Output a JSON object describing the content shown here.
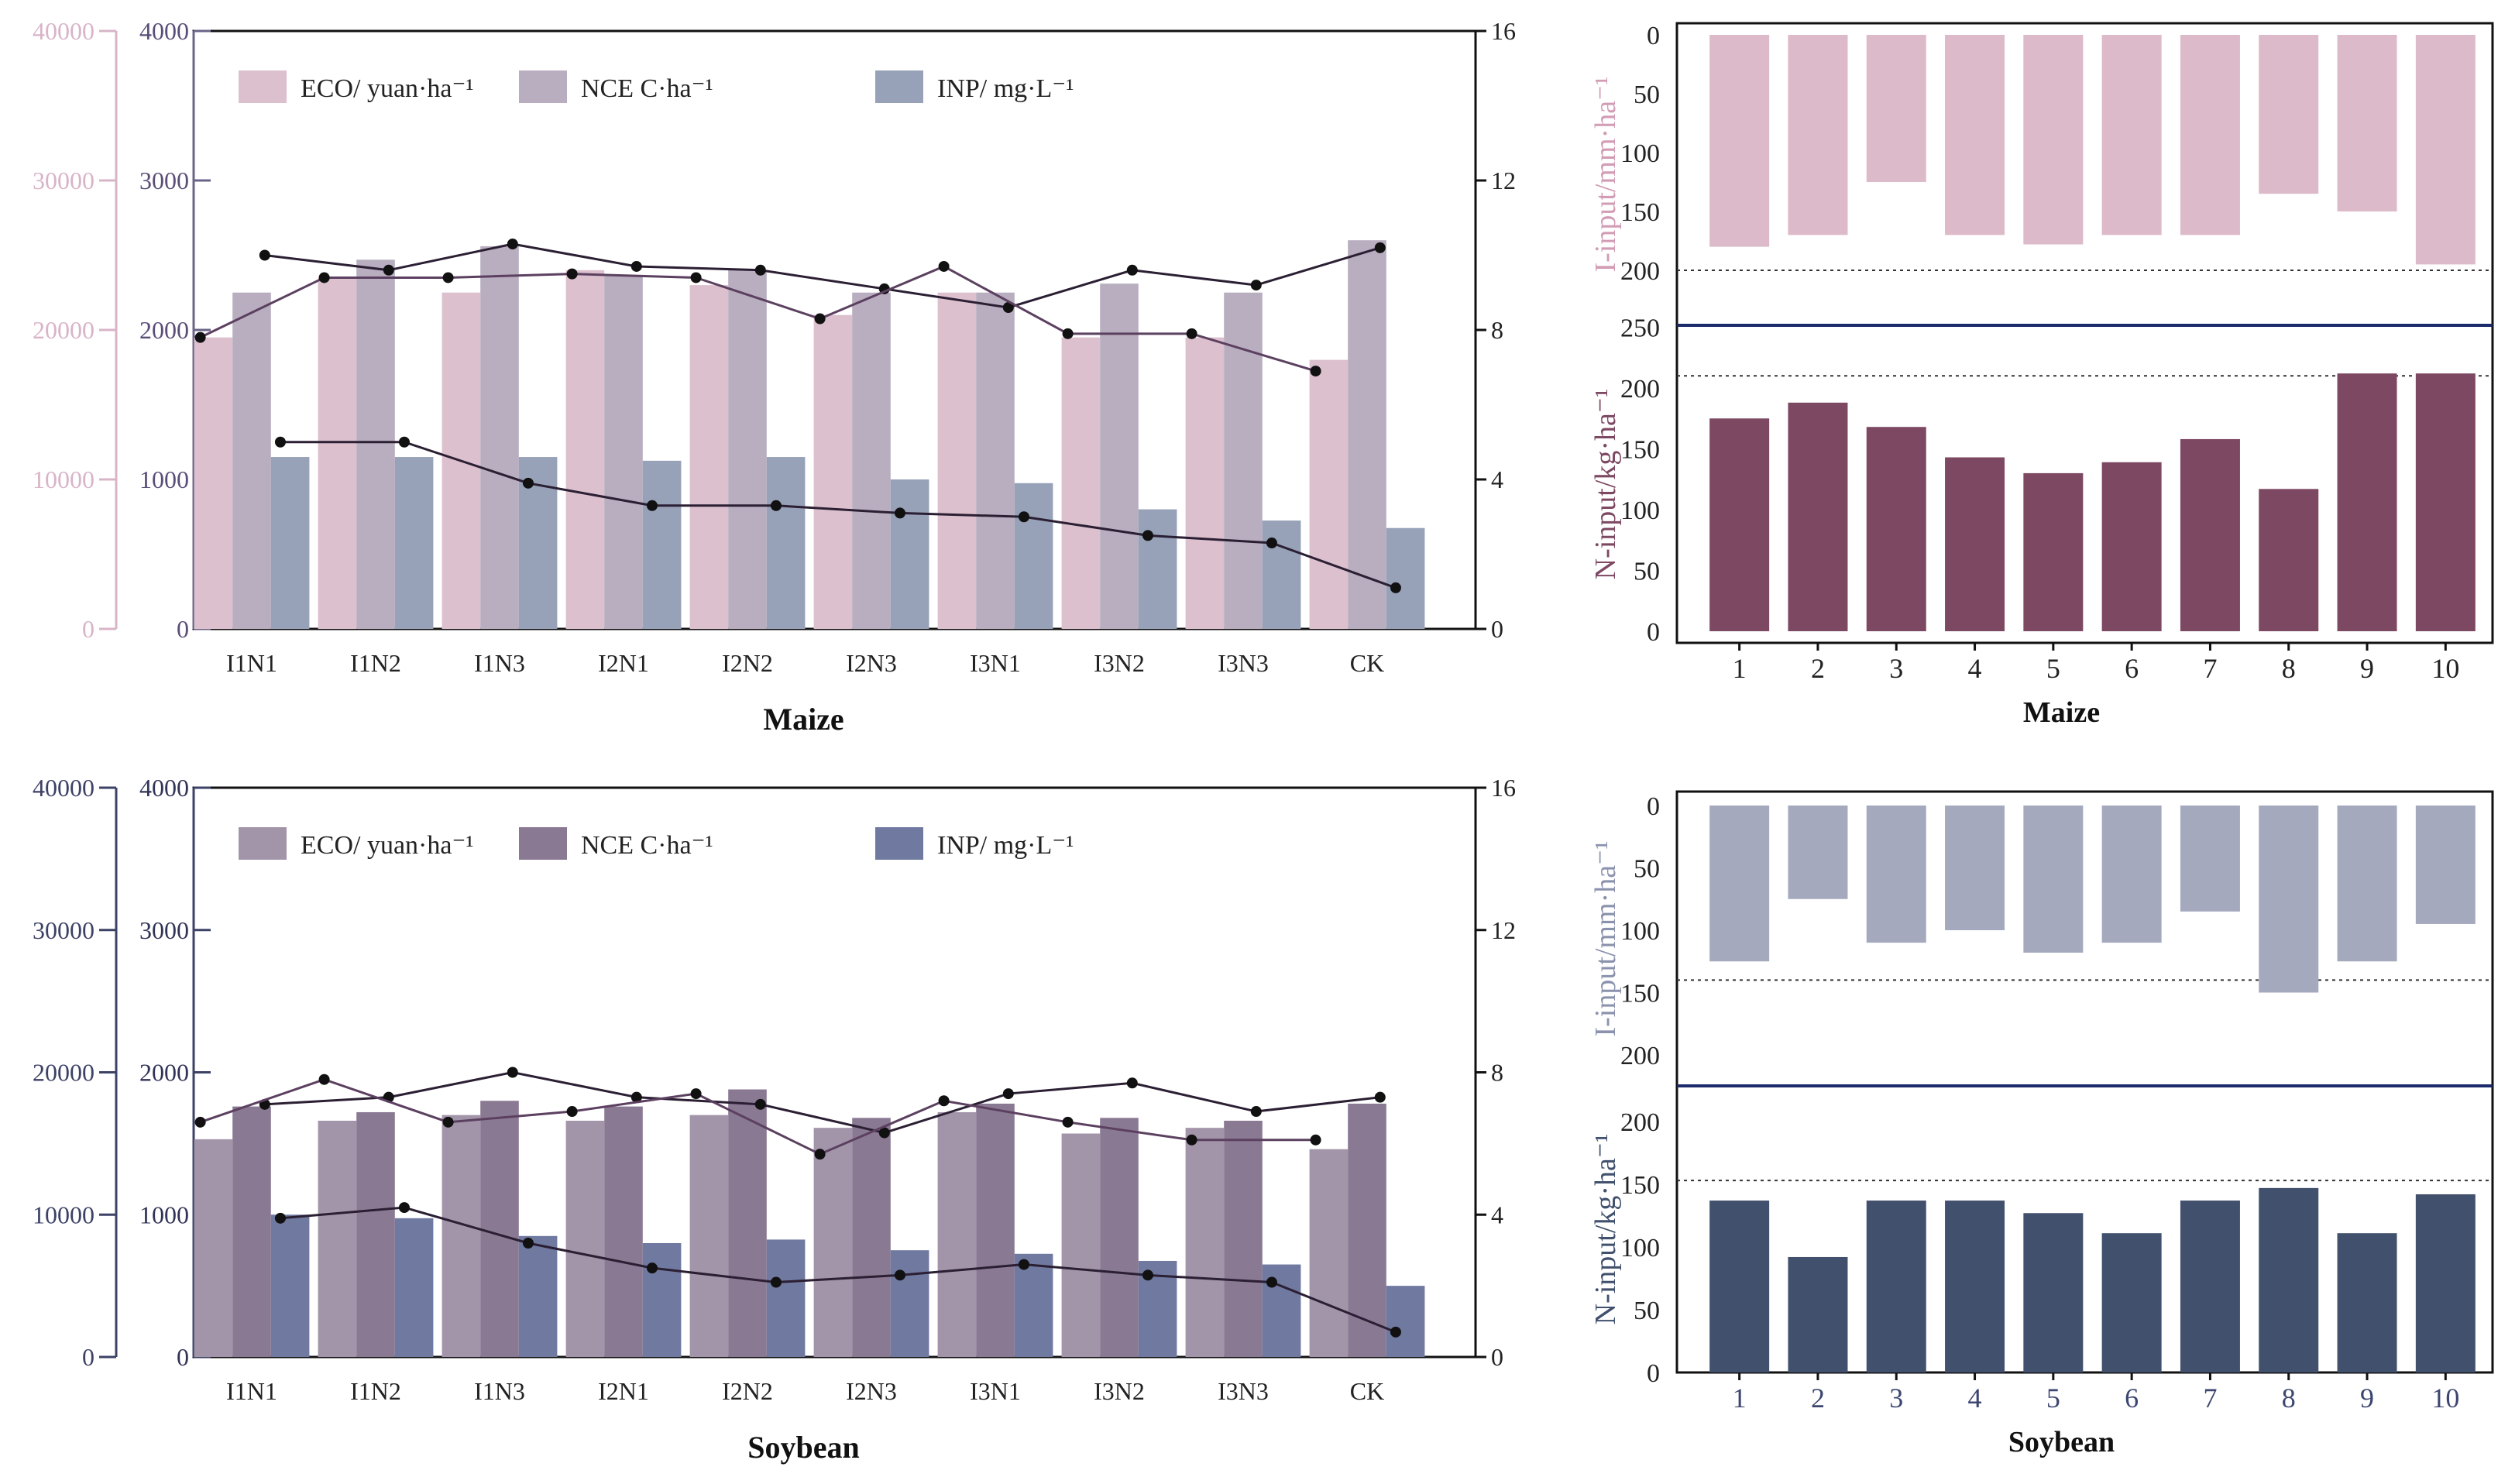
{
  "colors": {
    "maize": {
      "eco": "#dcc0ce",
      "nce": "#b8aebf",
      "inp": "#97a1b8",
      "axis_far": "#d8b4c8",
      "axis_left": "#6b6488",
      "irr": "#dcbac9",
      "nin": "#7d4862",
      "ylab_irr": "#d29cb4",
      "ylab_n": "#7d4862"
    },
    "soy": {
      "eco": "#a295a9",
      "nce": "#8a7993",
      "inp": "#7079a0",
      "axis_far": "#3c4166",
      "axis_left": "#3c4166",
      "irr": "#a4a9be",
      "nin": "#41506d",
      "ylab_irr": "#8b92ad",
      "ylab_n": "#41506d"
    },
    "line_dark": "#2b1f33",
    "line_purple": "#5c4060",
    "sep": "#1a2a6a"
  },
  "chart_data": [
    {
      "id": "maize-main",
      "type": "bar",
      "xlabel": "Maize",
      "categories": [
        "I1N1",
        "I1N2",
        "I1N3",
        "I2N1",
        "I2N2",
        "I2N3",
        "I3N1",
        "I3N2",
        "I3N3",
        "CK"
      ],
      "series": [
        {
          "name": "ECO/ yuan·ha⁻¹",
          "values": [
            19500,
            23500,
            22500,
            24000,
            23000,
            21000,
            22500,
            19500,
            19500,
            18000
          ]
        },
        {
          "name": "NCE C·ha⁻¹",
          "values": [
            2250,
            2470,
            2560,
            2360,
            2400,
            2250,
            2250,
            2310,
            2250,
            2600
          ]
        },
        {
          "name": "INP/ mg·L⁻¹",
          "values": [
            4.6,
            4.6,
            4.6,
            4.5,
            4.6,
            4.0,
            3.9,
            3.2,
            2.9,
            2.7
          ]
        }
      ],
      "lines": [
        {
          "name": "line-a",
          "values": [
            10.0,
            9.6,
            10.3,
            9.7,
            9.6,
            9.1,
            8.6,
            9.6,
            9.2,
            10.2
          ]
        },
        {
          "name": "line-b",
          "values": [
            7.8,
            9.4,
            9.4,
            9.5,
            9.4,
            8.3,
            9.7,
            7.9,
            7.9,
            6.9
          ]
        },
        {
          "name": "line-inp",
          "values": [
            5.0,
            5.0,
            3.9,
            3.3,
            3.3,
            3.1,
            3.0,
            2.5,
            2.3,
            1.1
          ]
        }
      ],
      "axes": {
        "far_left": {
          "ticks": [
            0,
            10000,
            20000,
            30000,
            40000
          ],
          "labels": [
            "0",
            "10000",
            "20000",
            "30000",
            "40000"
          ]
        },
        "left": {
          "ticks": [
            0,
            1000,
            2000,
            3000,
            4000
          ],
          "labels": [
            "0",
            "1000",
            "2000",
            "3000",
            "4000"
          ]
        },
        "right": {
          "ticks": [
            0,
            4,
            8,
            12,
            16
          ],
          "labels": [
            "0",
            "4",
            "8",
            "12",
            "16"
          ]
        }
      }
    },
    {
      "id": "soybean-main",
      "type": "bar",
      "xlabel": "Soybean",
      "categories": [
        "I1N1",
        "I1N2",
        "I1N3",
        "I2N1",
        "I2N2",
        "I2N3",
        "I3N1",
        "I3N2",
        "I3N3",
        "CK"
      ],
      "series": [
        {
          "name": "ECO/ yuan·ha⁻¹",
          "values": [
            15300,
            16600,
            17000,
            16600,
            17000,
            16100,
            17200,
            15700,
            16100,
            14600
          ]
        },
        {
          "name": "NCE C·ha⁻¹",
          "values": [
            1760,
            1720,
            1800,
            1760,
            1880,
            1680,
            1780,
            1680,
            1660,
            1780
          ]
        },
        {
          "name": "INP/ mg·L⁻¹",
          "values": [
            4.0,
            3.9,
            3.4,
            3.2,
            3.3,
            3.0,
            2.9,
            2.7,
            2.6,
            2.0
          ]
        }
      ],
      "lines": [
        {
          "name": "line-a",
          "values": [
            7.1,
            7.3,
            8.0,
            7.3,
            7.1,
            6.3,
            7.4,
            7.7,
            6.9,
            7.3
          ]
        },
        {
          "name": "line-b",
          "values": [
            6.6,
            7.8,
            6.6,
            6.9,
            7.4,
            5.7,
            7.2,
            6.6,
            6.1,
            6.1
          ]
        },
        {
          "name": "line-inp",
          "values": [
            3.9,
            4.2,
            3.2,
            2.5,
            2.1,
            2.3,
            2.6,
            2.3,
            2.1,
            0.7
          ]
        }
      ],
      "axes": {
        "far_left": {
          "ticks": [
            0,
            10000,
            20000,
            30000,
            40000
          ],
          "labels": [
            "0",
            "10000",
            "20000",
            "30000",
            "40000"
          ]
        },
        "left": {
          "ticks": [
            0,
            1000,
            2000,
            3000,
            4000
          ],
          "labels": [
            "0",
            "1000",
            "2000",
            "3000",
            "4000"
          ]
        },
        "right": {
          "ticks": [
            0,
            4,
            8,
            12,
            16
          ],
          "labels": [
            "0",
            "4",
            "8",
            "12",
            "16"
          ]
        }
      }
    },
    {
      "id": "maize-inputs",
      "type": "bar",
      "xlabel": "Maize",
      "categories": [
        "1",
        "2",
        "3",
        "4",
        "5",
        "6",
        "7",
        "8",
        "9",
        "10"
      ],
      "irrigation": {
        "ylabel": "I-input/mm·ha⁻¹",
        "values": [
          180,
          170,
          125,
          170,
          178,
          170,
          170,
          135,
          150,
          195
        ],
        "ticks": [
          "0",
          "50",
          "100",
          "150",
          "200"
        ],
        "reference": 200
      },
      "nitrogen": {
        "ylabel": "N-input/kg·ha⁻¹",
        "values": [
          175,
          188,
          168,
          143,
          130,
          139,
          158,
          117,
          212,
          212
        ],
        "ticks": [
          "0",
          "50",
          "100",
          "150",
          "200",
          "250"
        ],
        "reference": 210
      }
    },
    {
      "id": "soybean-inputs",
      "type": "bar",
      "xlabel": "Soybean",
      "categories": [
        "1",
        "2",
        "3",
        "4",
        "5",
        "6",
        "7",
        "8",
        "9",
        "10"
      ],
      "irrigation": {
        "ylabel": "I-input/mm·ha⁻¹",
        "values": [
          125,
          75,
          110,
          100,
          118,
          110,
          85,
          150,
          125,
          95
        ],
        "ticks": [
          "0",
          "50",
          "100",
          "150",
          "200"
        ],
        "reference": 140
      },
      "nitrogen": {
        "ylabel": "N-input/kg·ha⁻¹",
        "values": [
          137,
          92,
          137,
          137,
          127,
          111,
          137,
          147,
          111,
          142
        ],
        "ticks": [
          "0",
          "50",
          "100",
          "150",
          "200"
        ],
        "reference": 153
      }
    }
  ]
}
